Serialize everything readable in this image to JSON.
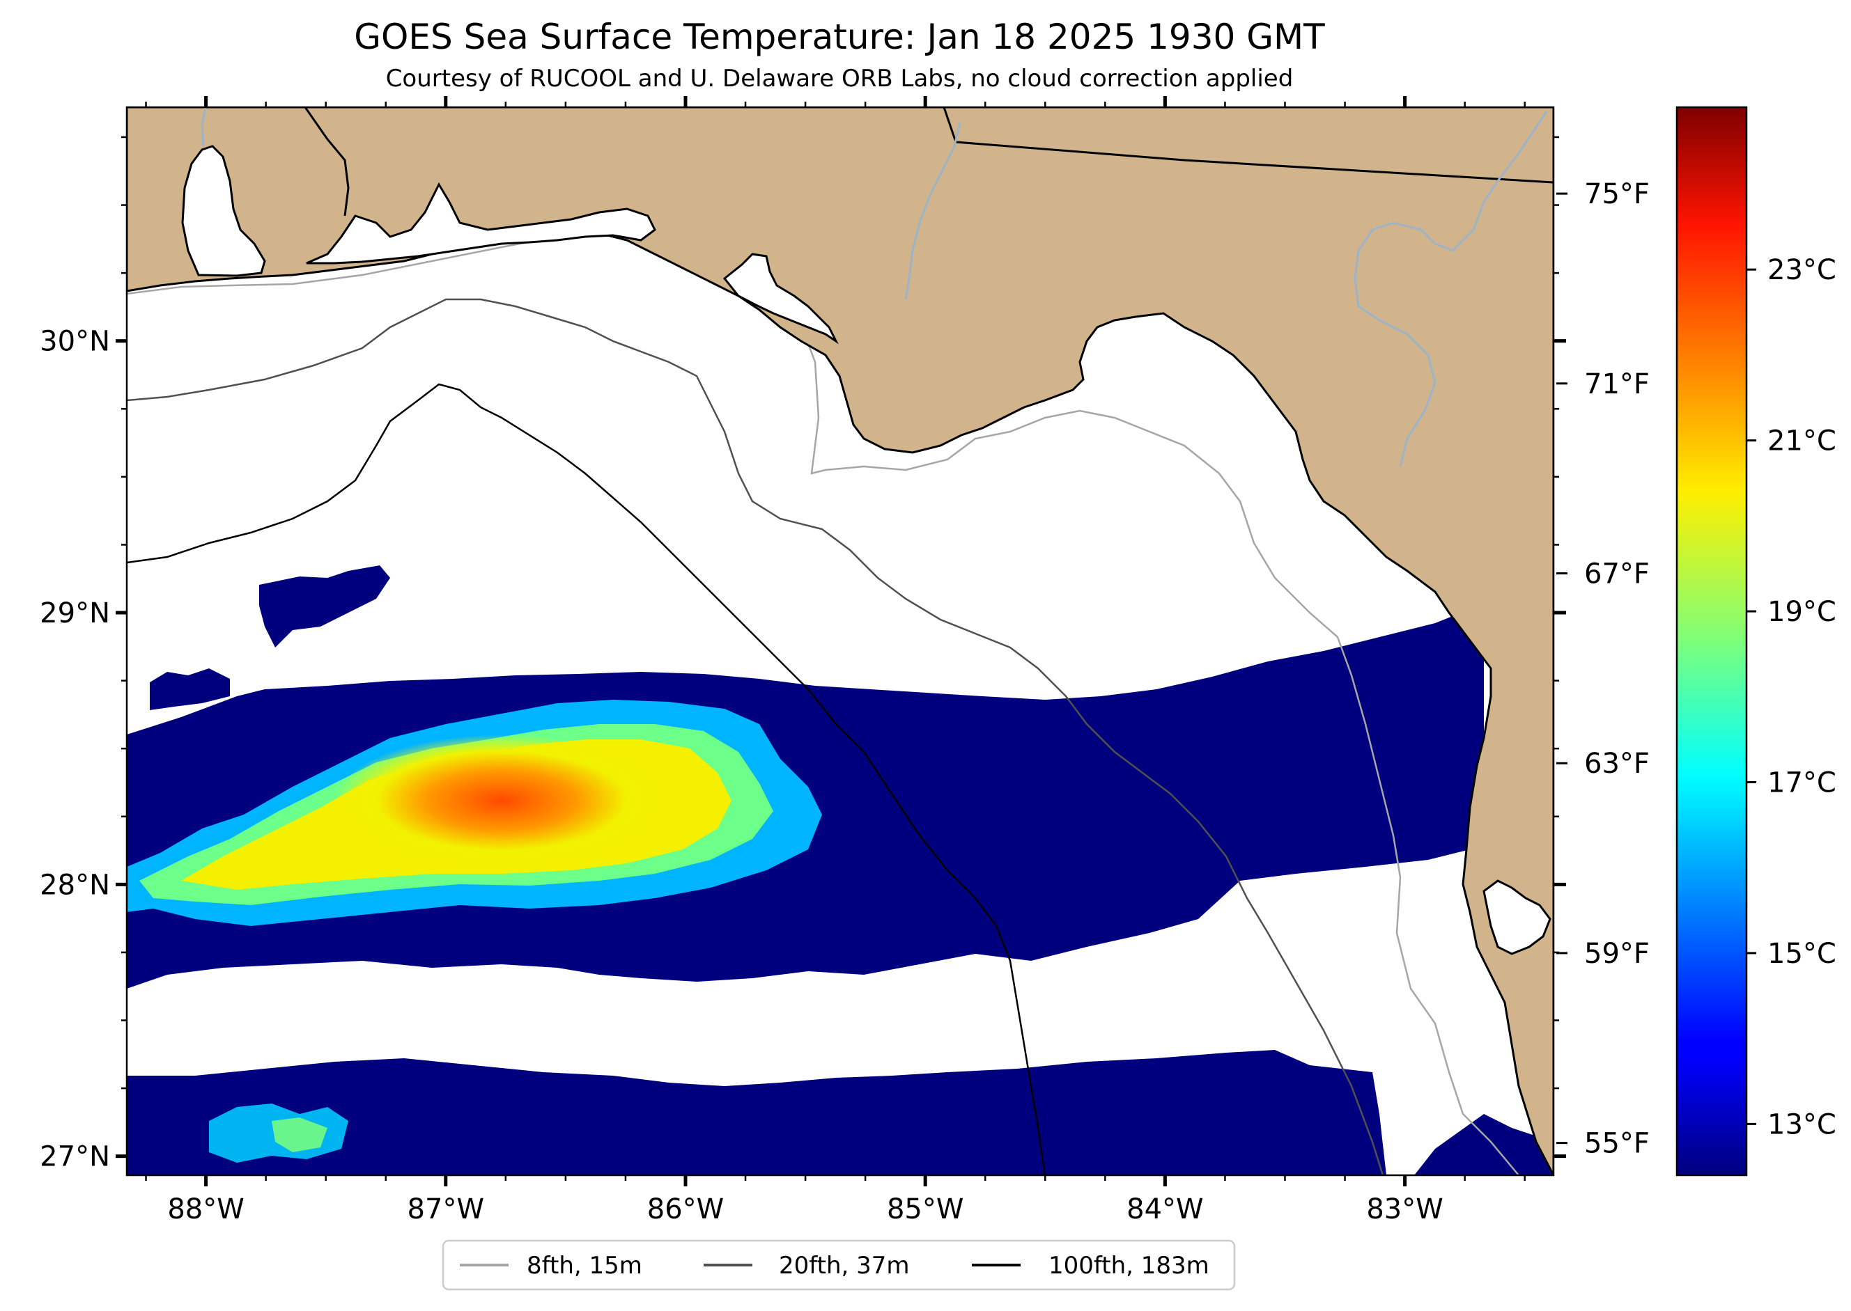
{
  "title": "GOES Sea Surface Temperature: Jan 18 2025 1930 GMT",
  "subtitle": "Courtesy of RUCOOL and U. Delaware ORB Labs, no cloud correction applied",
  "map": {
    "extent": {
      "lon_min": -88.33,
      "lon_max": -82.38,
      "lat_min": 26.93,
      "lat_max": 30.86
    },
    "lon_ticks": [
      {
        "value": -88,
        "label": "88°W"
      },
      {
        "value": -87,
        "label": "87°W"
      },
      {
        "value": -86,
        "label": "86°W"
      },
      {
        "value": -85,
        "label": "85°W"
      },
      {
        "value": -84,
        "label": "84°W"
      },
      {
        "value": -83,
        "label": "83°W"
      }
    ],
    "lat_ticks": [
      {
        "value": 27,
        "label": "27°N"
      },
      {
        "value": 28,
        "label": "28°N"
      },
      {
        "value": 29,
        "label": "29°N"
      },
      {
        "value": 30,
        "label": "30°N"
      }
    ],
    "land_color": "#d2b48c",
    "ocean_color": "#ffffff",
    "river_color": "#9db4c8"
  },
  "fahrenheit_ticks": [
    {
      "value": 55,
      "label": "55°F"
    },
    {
      "value": 59,
      "label": "59°F"
    },
    {
      "value": 63,
      "label": "63°F"
    },
    {
      "value": 67,
      "label": "67°F"
    },
    {
      "value": 71,
      "label": "71°F"
    },
    {
      "value": 75,
      "label": "75°F"
    }
  ],
  "colorbar": {
    "colormap": "jet",
    "min_c": 12.4,
    "max_c": 24.9,
    "ticks": [
      {
        "value": 13,
        "label": "13°C"
      },
      {
        "value": 15,
        "label": "15°C"
      },
      {
        "value": 17,
        "label": "17°C"
      },
      {
        "value": 19,
        "label": "19°C"
      },
      {
        "value": 21,
        "label": "21°C"
      },
      {
        "value": 23,
        "label": "23°C"
      }
    ]
  },
  "legend": {
    "placement": "bottom-center",
    "items": [
      {
        "label": "8fth, 15m",
        "color": "#a6a6a6"
      },
      {
        "label": "20fth, 37m",
        "color": "#505050"
      },
      {
        "label": "100fth, 183m",
        "color": "#000000"
      }
    ]
  }
}
